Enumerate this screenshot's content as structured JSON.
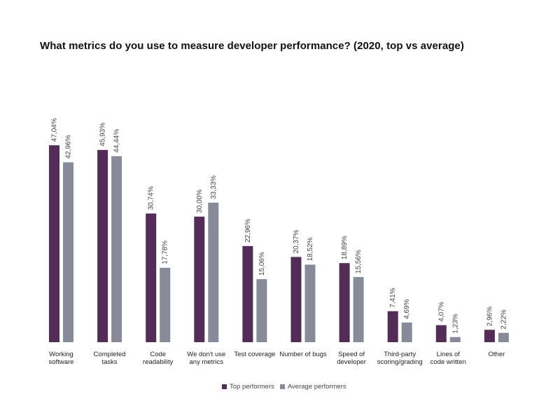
{
  "chart_data": {
    "type": "bar",
    "title": "What metrics do you use to measure developer performance? (2020, top vs average)",
    "categories": [
      [
        "Working",
        "software"
      ],
      [
        "Completed",
        "tasks"
      ],
      [
        "Code",
        "readability"
      ],
      [
        "We don't use",
        "any metrics"
      ],
      [
        "Test coverage"
      ],
      [
        "Number of bugs"
      ],
      [
        "Speed of",
        "developer"
      ],
      [
        "Third-party",
        "scoring/grading"
      ],
      [
        "Lines of",
        "code written"
      ],
      [
        "Other"
      ]
    ],
    "series": [
      {
        "name": "Top performers",
        "color": "#532d58",
        "values": [
          47.04,
          45.93,
          30.74,
          30.0,
          22.96,
          20.37,
          18.89,
          7.41,
          4.07,
          2.96
        ],
        "labels": [
          "47,04%",
          "45,93%",
          "30,74%",
          "30,00%",
          "22,96%",
          "20,37%",
          "18,89%",
          "7,41%",
          "4,07%",
          "2,96%"
        ]
      },
      {
        "name": "Average performers",
        "color": "#878a99",
        "values": [
          42.96,
          44.44,
          17.78,
          33.33,
          15.06,
          18.52,
          15.56,
          4.69,
          1.23,
          2.22
        ],
        "labels": [
          "42,96%",
          "44,44%",
          "17,78%",
          "33,33%",
          "15,06%",
          "18,52%",
          "15,56%",
          "4,69%",
          "1,23%",
          "2,22%"
        ]
      }
    ],
    "ylim": [
      0,
      50
    ],
    "grid": false,
    "legend_position": "bottom"
  }
}
